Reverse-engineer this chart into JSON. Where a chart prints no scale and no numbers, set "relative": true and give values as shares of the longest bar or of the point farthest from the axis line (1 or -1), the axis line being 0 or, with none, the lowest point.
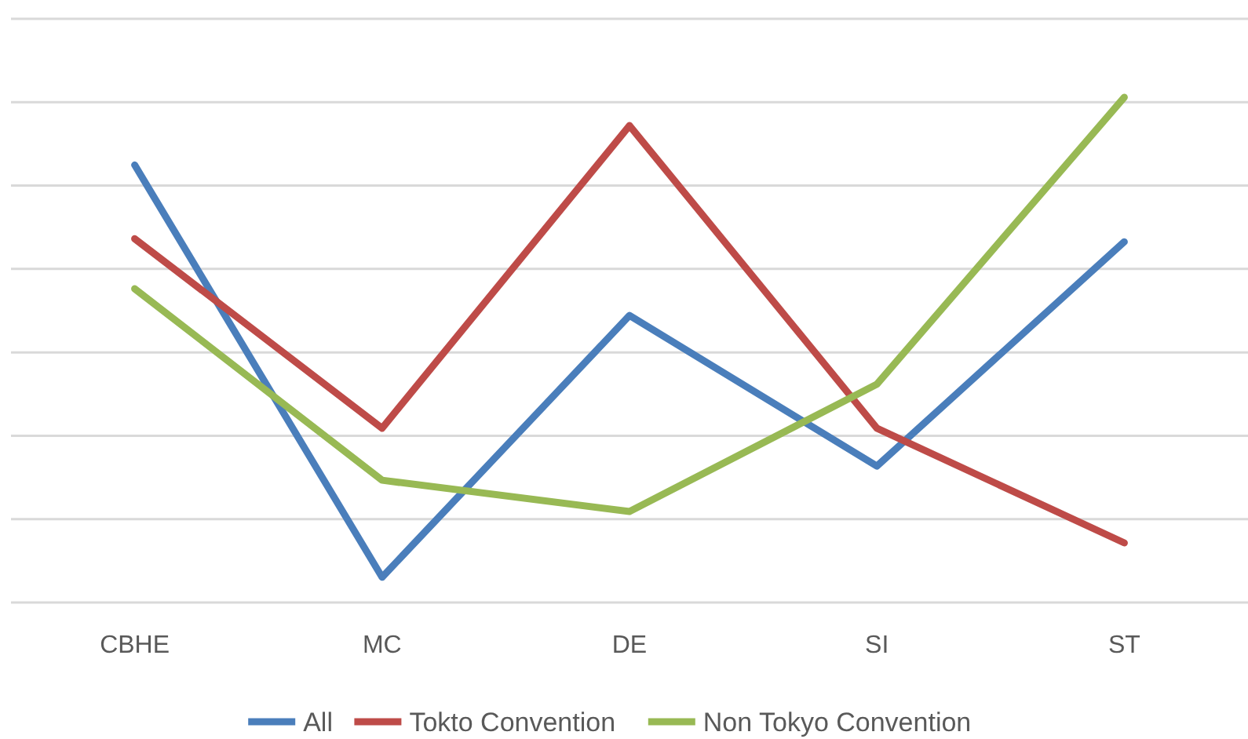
{
  "chart_data": {
    "type": "line",
    "relative": true,
    "categories": [
      "CBHE",
      "MC",
      "DE",
      "SI",
      "ST"
    ],
    "series": [
      {
        "name": "All",
        "color": "#4a7ebb",
        "values": [
          0.866,
          0.05,
          0.568,
          0.27,
          0.714
        ]
      },
      {
        "name": "Tokto Convention",
        "color": "#be4b48",
        "values": [
          0.72,
          0.345,
          0.944,
          0.345,
          0.118
        ]
      },
      {
        "name": "Non Tokyo Convention",
        "color": "#98b954",
        "values": [
          0.621,
          0.242,
          0.18,
          0.432,
          1
        ]
      }
    ],
    "grid": "y",
    "legend": "bottom",
    "marker": "none",
    "line_style": "solid"
  }
}
